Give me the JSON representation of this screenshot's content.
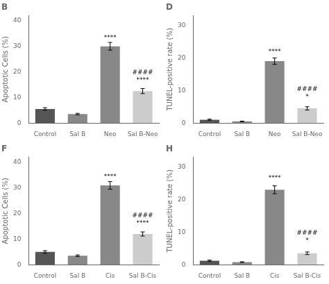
{
  "chart_data": [
    {
      "type": "bar",
      "title": "B",
      "ylabel": "Apoptotic Cells (%)",
      "categories": [
        "Control",
        "Sal B",
        "Neo",
        "Sal B-Neo"
      ],
      "values": [
        5.5,
        3.5,
        30.0,
        12.5
      ],
      "error_bars": [
        0.5,
        0.3,
        1.5,
        1.0
      ],
      "colors": [
        "#555555",
        "#888888",
        "#888888",
        "#cccccc"
      ],
      "ylim": [
        0,
        42
      ],
      "yticks": [
        0,
        10,
        20,
        30,
        40
      ],
      "grid": false,
      "annotations": [
        {
          "text": "****",
          "x": "Neo",
          "y": 32.0
        },
        {
          "text": "####\n****",
          "x": "Sal B-Neo",
          "y": 15.5
        }
      ]
    },
    {
      "type": "bar",
      "title": "D",
      "ylabel": "TUNEL-positive rate (%)",
      "categories": [
        "Control",
        "Sal B",
        "Neo",
        "Sal B-Neo"
      ],
      "values": [
        1.0,
        0.5,
        19.0,
        4.5
      ],
      "error_bars": [
        0.2,
        0.1,
        1.0,
        0.5
      ],
      "colors": [
        "#555555",
        "#888888",
        "#888888",
        "#cccccc"
      ],
      "ylim": [
        0,
        33
      ],
      "yticks": [
        0,
        10,
        20,
        30
      ],
      "grid": false,
      "annotations": [
        {
          "text": "****",
          "x": "Neo",
          "y": 21.0
        },
        {
          "text": "####\n*",
          "x": "Sal B-Neo",
          "y": 7.0
        }
      ]
    },
    {
      "type": "bar",
      "title": "F",
      "ylabel": "Apoptotic Cells (%)",
      "categories": [
        "Control",
        "Sal B",
        "Cis",
        "Sal B-Cis"
      ],
      "values": [
        5.0,
        3.5,
        31.0,
        12.0
      ],
      "error_bars": [
        0.5,
        0.3,
        1.5,
        0.8
      ],
      "colors": [
        "#555555",
        "#888888",
        "#888888",
        "#cccccc"
      ],
      "ylim": [
        0,
        42
      ],
      "yticks": [
        0,
        10,
        20,
        30,
        40
      ],
      "grid": false,
      "annotations": [
        {
          "text": "****",
          "x": "Cis",
          "y": 33.0
        },
        {
          "text": "####\n****",
          "x": "Sal B-Cis",
          "y": 15.0
        }
      ]
    },
    {
      "type": "bar",
      "title": "H",
      "ylabel": "TUNEL-positive rate (%)",
      "categories": [
        "Control",
        "Sal B",
        "Cis",
        "Sal B-Cis"
      ],
      "values": [
        1.2,
        0.8,
        23.0,
        3.5
      ],
      "error_bars": [
        0.2,
        0.1,
        1.2,
        0.4
      ],
      "colors": [
        "#555555",
        "#888888",
        "#888888",
        "#cccccc"
      ],
      "ylim": [
        0,
        33
      ],
      "yticks": [
        0,
        10,
        20,
        30
      ],
      "grid": false,
      "annotations": [
        {
          "text": "****",
          "x": "Cis",
          "y": 25.5
        },
        {
          "text": "####\n*",
          "x": "Sal B-Cis",
          "y": 6.5
        }
      ]
    }
  ]
}
